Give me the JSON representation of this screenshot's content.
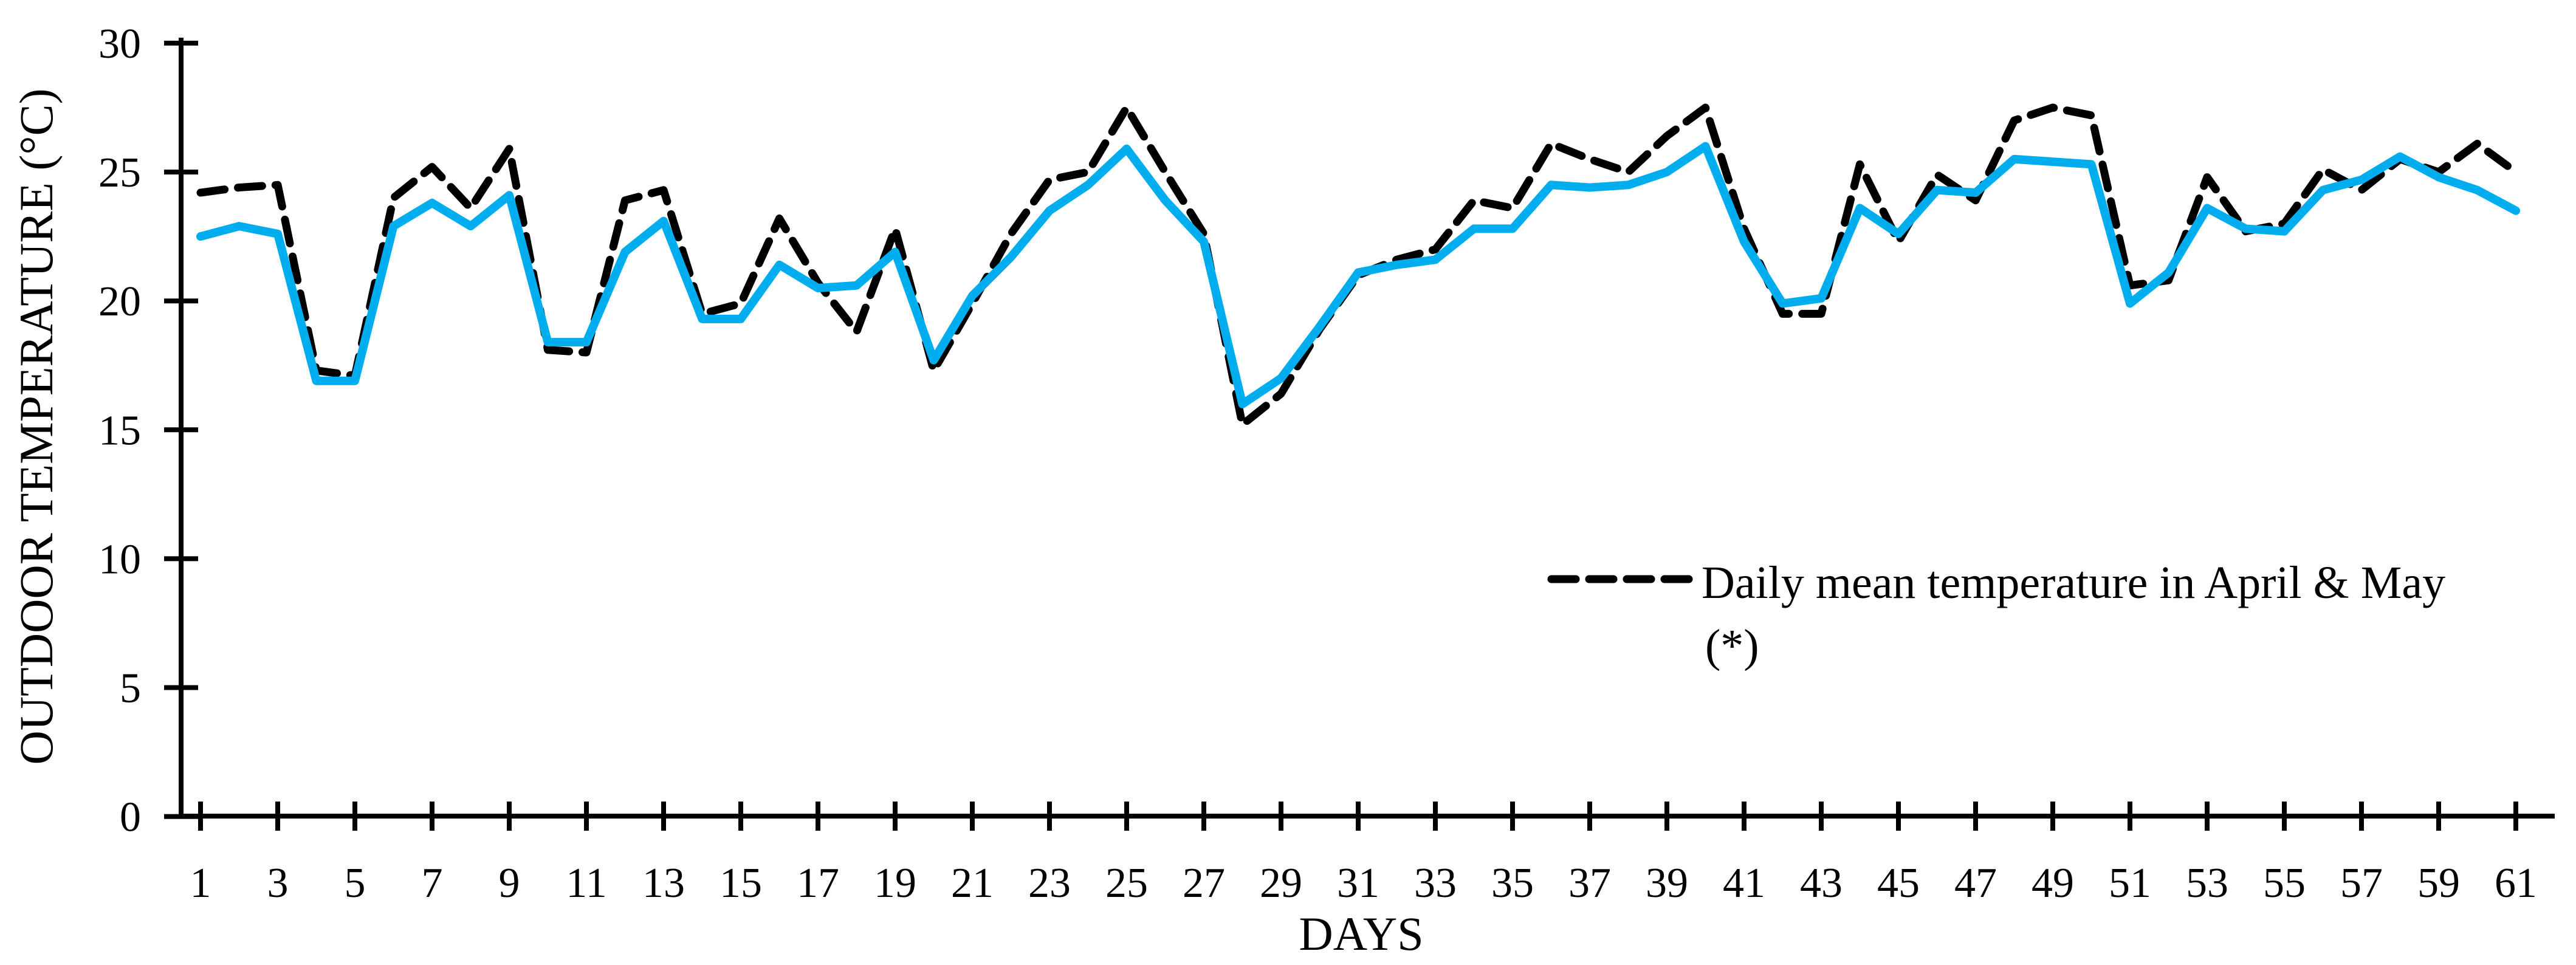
{
  "figure": {
    "background": "#ffffff",
    "y_axis_title": "OUTDOOR TEMPERATURE (°C)",
    "x_axis_title": "DAYS",
    "legend": {
      "line1": "Daily mean temperature in April & May",
      "line2": "(*)",
      "sample_color": "#000000",
      "sample_style": "dashed"
    }
  },
  "chart_data": {
    "type": "line",
    "title": "",
    "xlabel": "DAYS",
    "ylabel": "OUTDOOR TEMPERATURE (°C)",
    "grid": false,
    "legend_position": "center-right-inside-plot",
    "ylim": [
      0,
      30
    ],
    "yticks": [
      0,
      5,
      10,
      15,
      20,
      25,
      30
    ],
    "x_tick_labels": [
      1,
      3,
      5,
      7,
      9,
      11,
      13,
      15,
      17,
      19,
      21,
      23,
      25,
      27,
      29,
      31,
      33,
      35,
      37,
      39,
      41,
      43,
      45,
      47,
      49,
      51,
      53,
      55,
      57,
      59,
      61
    ],
    "x": [
      1,
      2,
      3,
      4,
      5,
      6,
      7,
      8,
      9,
      10,
      11,
      12,
      13,
      14,
      15,
      16,
      17,
      18,
      19,
      20,
      21,
      22,
      23,
      24,
      25,
      26,
      27,
      28,
      29,
      30,
      31,
      32,
      33,
      34,
      35,
      36,
      37,
      38,
      39,
      40,
      41,
      42,
      43,
      44,
      45,
      46,
      47,
      48,
      49,
      50,
      51,
      52,
      53,
      54,
      55,
      56,
      57,
      58,
      59,
      60,
      61
    ],
    "series": [
      {
        "name": "Daily mean temperature in April & May (*)",
        "style": "dashed",
        "color": "#000000",
        "values": [
          24.2,
          24.4,
          24.5,
          17.3,
          17.1,
          24.0,
          25.2,
          23.6,
          25.9,
          18.1,
          18.0,
          23.9,
          24.3,
          19.5,
          19.9,
          23.2,
          20.7,
          18.8,
          22.8,
          17.3,
          19.9,
          22.6,
          24.7,
          25.0,
          27.5,
          25.0,
          22.6,
          15.2,
          16.4,
          18.9,
          21.0,
          21.6,
          22.0,
          23.9,
          23.6,
          26.1,
          25.5,
          25.0,
          26.4,
          27.5,
          22.8,
          19.5,
          19.5,
          25.3,
          22.3,
          24.9,
          23.9,
          27.0,
          27.5,
          27.2,
          20.6,
          20.8,
          24.8,
          22.7,
          23.0,
          25.1,
          24.3,
          25.5,
          25.0,
          26.1,
          25.0
        ]
      },
      {
        "name": "",
        "style": "solid",
        "color": "#00AEEF",
        "values": [
          22.5,
          22.9,
          22.6,
          16.9,
          16.9,
          22.9,
          23.8,
          22.9,
          24.1,
          18.4,
          18.4,
          21.9,
          23.1,
          19.3,
          19.3,
          21.4,
          20.5,
          20.6,
          21.9,
          17.7,
          20.2,
          21.7,
          23.5,
          24.5,
          25.9,
          23.9,
          22.3,
          16.0,
          17.0,
          19.0,
          21.1,
          21.4,
          21.6,
          22.8,
          22.8,
          24.5,
          24.4,
          24.5,
          25.0,
          26.0,
          22.3,
          19.9,
          20.1,
          23.6,
          22.6,
          24.3,
          24.2,
          25.5,
          25.4,
          25.3,
          19.9,
          21.1,
          23.6,
          22.8,
          22.7,
          24.3,
          24.7,
          25.6,
          24.8,
          24.3,
          23.5
        ]
      }
    ]
  }
}
